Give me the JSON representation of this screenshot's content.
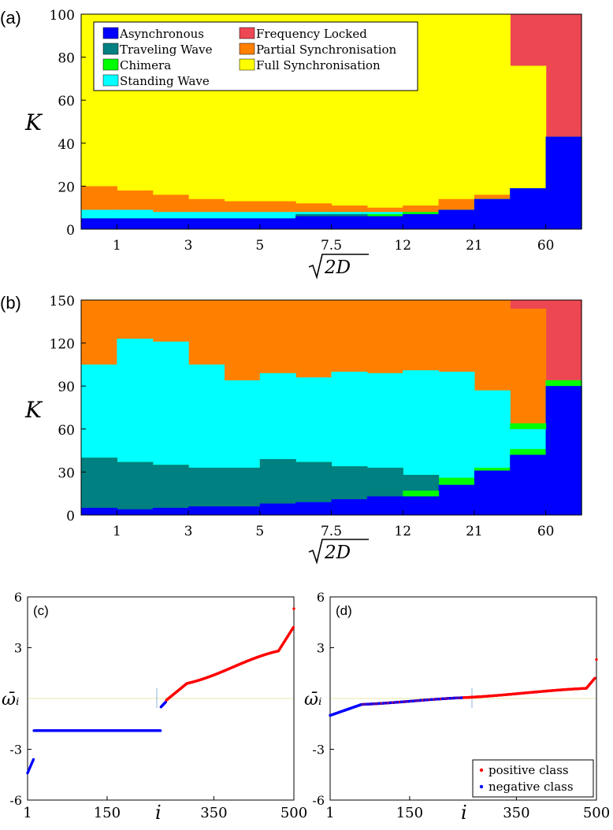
{
  "colors": {
    "asynchronous": "#0000ff",
    "traveling_wave": "#008080",
    "chimera": "#00ff00",
    "standing_wave": "#00ffff",
    "frequency_locked": "#ed4753",
    "partial_sync": "#ff8000",
    "full_sync": "#ffff00",
    "positive": "#ff0000",
    "negative": "#0000ff"
  },
  "legend_ab": {
    "asynchronous": "Asynchronous",
    "traveling_wave": "Traveling Wave",
    "chimera": "Chimera",
    "standing_wave": "Standing Wave",
    "frequency_locked": "Frequency Locked",
    "partial_sync": "Partial Synchronisation",
    "full_sync": "Full Synchronisation"
  },
  "legend_d": {
    "positive": "positive class",
    "negative": "negative class"
  },
  "chart_data": [
    {
      "id": "a",
      "panel_label": "(a)",
      "type": "area",
      "title": "",
      "xlabel": "√2D",
      "ylabel": "K",
      "ylim": [
        0,
        100
      ],
      "yticks": [
        "0",
        "20",
        "40",
        "60",
        "80",
        "100"
      ],
      "xticks": [
        "1",
        "3",
        "5",
        "7.5",
        "12",
        "21",
        "60"
      ],
      "x_columns": 14,
      "legend_position": "top-left",
      "series_tops": {
        "asynchronous": [
          5,
          5,
          5,
          5,
          5,
          5,
          6,
          6,
          6,
          7,
          9,
          14,
          19,
          43
        ],
        "traveling_wave": [
          5,
          5,
          5,
          5,
          5,
          5,
          7,
          7,
          6,
          7,
          9,
          14,
          19,
          43
        ],
        "chimera": [
          5,
          5,
          5,
          5,
          5,
          5,
          7,
          7,
          7,
          8,
          9,
          14,
          19,
          43
        ],
        "standing_wave": [
          9,
          9,
          8,
          8,
          8,
          8,
          8,
          8,
          8,
          8,
          9,
          14,
          19,
          43
        ],
        "partial_sync": [
          20,
          18,
          16,
          14,
          13,
          13,
          12,
          11,
          10,
          11,
          14,
          16,
          19,
          43
        ],
        "full_sync": [
          100,
          100,
          100,
          100,
          100,
          100,
          100,
          100,
          100,
          100,
          100,
          100,
          76,
          43
        ],
        "frequency_locked": [
          100,
          100,
          100,
          100,
          100,
          100,
          100,
          100,
          100,
          100,
          100,
          100,
          100,
          100
        ]
      }
    },
    {
      "id": "b",
      "panel_label": "(b)",
      "type": "area",
      "title": "",
      "xlabel": "√2D",
      "ylabel": "K",
      "ylim": [
        0,
        150
      ],
      "yticks": [
        "0",
        "30",
        "60",
        "90",
        "120",
        "150"
      ],
      "xticks": [
        "1",
        "3",
        "5",
        "7.5",
        "12",
        "21",
        "60"
      ],
      "x_columns": 14,
      "series_tops": {
        "asynchronous": [
          5,
          4,
          5,
          6,
          6,
          8,
          9,
          11,
          13,
          17,
          21,
          31,
          42,
          90
        ],
        "traveling_wave": [
          40,
          37,
          35,
          33,
          33,
          39,
          37,
          34,
          33,
          28,
          21,
          31,
          42,
          90
        ],
        "chimera": [
          40,
          37,
          35,
          33,
          33,
          39,
          37,
          34,
          33,
          28,
          26,
          33,
          46,
          94
        ],
        "standing_wave": [
          105,
          123,
          121,
          105,
          94,
          99,
          96,
          100,
          99,
          101,
          100,
          87,
          60,
          94
        ],
        "partial_sync": [
          150,
          150,
          150,
          150,
          150,
          150,
          150,
          150,
          150,
          150,
          150,
          150,
          144,
          94
        ],
        "frequency_locked": [
          150,
          150,
          150,
          150,
          150,
          150,
          150,
          150,
          150,
          150,
          150,
          150,
          150,
          150
        ]
      },
      "extra_bands": [
        {
          "col": 9,
          "series": "chimera",
          "from": 13,
          "to": 17
        },
        {
          "col": 12,
          "series": "chimera",
          "from": 60,
          "to": 64
        },
        {
          "col": 13,
          "series": "frequency_locked",
          "from": 144,
          "to": 150,
          "bottom_of_col": 12
        }
      ]
    },
    {
      "id": "c",
      "panel_label": "(c)",
      "type": "scatter",
      "xlabel": "i",
      "ylabel": "ω̄ᵢ",
      "xlim": [
        1,
        500
      ],
      "ylim": [
        -6,
        6
      ],
      "xticks": [
        "1",
        "150",
        "350",
        "500"
      ],
      "xtick_values": [
        1,
        150,
        350,
        500
      ],
      "yticks": [
        "-6",
        "-3",
        "3",
        "6"
      ],
      "ytick_values": [
        -6,
        -3,
        3,
        6
      ],
      "segments": [
        {
          "class": "negative",
          "i_from": 1,
          "i_to": 12,
          "y_from": -4.4,
          "y_to": -3.6
        },
        {
          "class": "negative",
          "i_from": 13,
          "i_to": 250,
          "y_from": -1.9,
          "y_to": -1.9
        },
        {
          "class": "negative",
          "i_from": 251,
          "i_to": 260,
          "y_from": -0.5,
          "y_to": -0.2
        },
        {
          "class": "positive",
          "i_from": 261,
          "i_to": 300,
          "y_from": -0.1,
          "y_to": 0.9
        },
        {
          "class": "positive",
          "i_from": 301,
          "i_to": 470,
          "y_from": 0.9,
          "y_to": 2.8
        },
        {
          "class": "positive",
          "i_from": 471,
          "i_to": 499,
          "y_from": 2.8,
          "y_to": 4.2
        },
        {
          "class": "positive",
          "i_from": 500,
          "i_to": 500,
          "y_from": 5.3,
          "y_to": 5.3
        }
      ]
    },
    {
      "id": "d",
      "panel_label": "(d)",
      "type": "scatter",
      "xlabel": "i",
      "ylabel": "ω̄ᵢ",
      "xlim": [
        1,
        500
      ],
      "ylim": [
        -6,
        6
      ],
      "xticks": [
        "1",
        "150",
        "350",
        "500"
      ],
      "xtick_values": [
        1,
        150,
        350,
        500
      ],
      "yticks": [
        "-6",
        "-3",
        "3",
        "6"
      ],
      "ytick_values": [
        -6,
        -3,
        3,
        6
      ],
      "legend_position": "bottom-right",
      "segments": [
        {
          "class": "negative",
          "i_from": 1,
          "i_to": 60,
          "y_from": -1.0,
          "y_to": -0.35
        },
        {
          "class": "mixed",
          "i_from": 61,
          "i_to": 250,
          "y_from": -0.35,
          "y_to": 0.05
        },
        {
          "class": "positive",
          "i_from": 251,
          "i_to": 480,
          "y_from": 0.05,
          "y_to": 0.6
        },
        {
          "class": "positive",
          "i_from": 481,
          "i_to": 497,
          "y_from": 0.6,
          "y_to": 1.2
        },
        {
          "class": "positive",
          "i_from": 500,
          "i_to": 500,
          "y_from": 2.3,
          "y_to": 2.3
        }
      ]
    }
  ]
}
